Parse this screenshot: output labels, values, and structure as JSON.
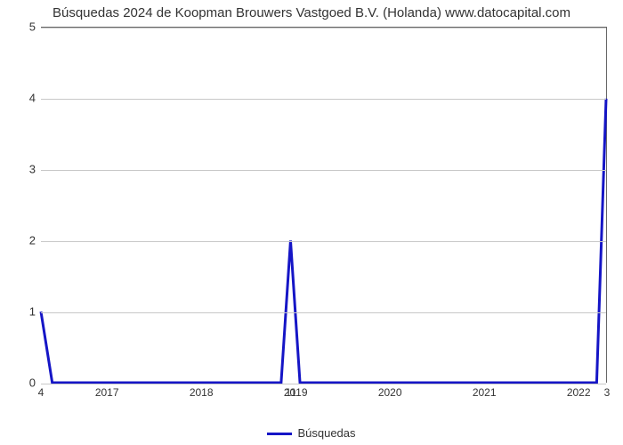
{
  "chart": {
    "type": "line",
    "title": "Búsquedas 2024 de Koopman Brouwers Vastgoed B.V. (Holanda) www.datocapital.com",
    "title_fontsize": 15,
    "title_color": "#333333",
    "background_color": "#ffffff",
    "plot_border_color": "#666666",
    "grid_color": "#c8c8c8",
    "tick_color": "#333333",
    "label_fontsize": 13,
    "xtick_fontsize": 12,
    "ylim": [
      0,
      5
    ],
    "ytick_step": 1,
    "yticks": [
      0,
      1,
      2,
      3,
      4,
      5
    ],
    "x_domain": [
      2016.3,
      2022.3
    ],
    "xticks": [
      2017,
      2018,
      2019,
      2020,
      2021,
      2022
    ],
    "series": {
      "name": "Búsquedas",
      "color": "#1515c6",
      "line_width": 3,
      "x": [
        2016.3,
        2016.42,
        2016.48,
        2018.8,
        2018.85,
        2018.95,
        2019.05,
        2022.2,
        2022.3
      ],
      "y": [
        1.0,
        0.0,
        0.0,
        0.0,
        0.0,
        2.0,
        0.0,
        0.0,
        4.0
      ],
      "point_labels": [
        {
          "x": 2016.3,
          "y": 1,
          "text": "4"
        },
        {
          "x": 2018.95,
          "y": 2,
          "text": "11"
        },
        {
          "x": 2022.3,
          "y": 4,
          "text": "3"
        }
      ]
    },
    "legend": {
      "label": "Búsquedas"
    }
  }
}
